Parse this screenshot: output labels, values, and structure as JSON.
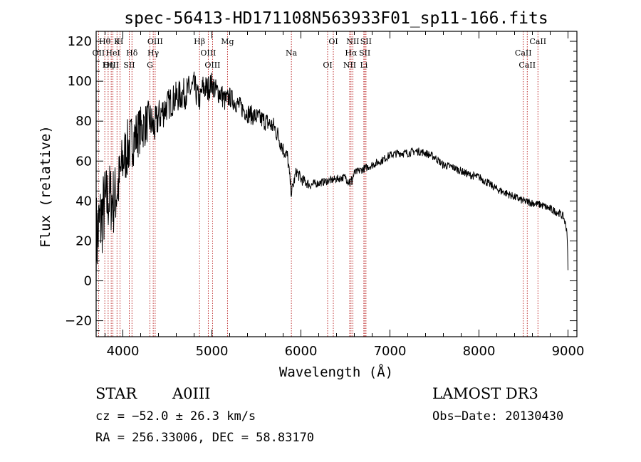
{
  "chart_data": {
    "type": "line",
    "title": "spec-56413-HD171108N563933F01_sp11-166.fits",
    "xlabel": "Wavelength (Å)",
    "ylabel": "Flux (relative)",
    "xlim": [
      3700,
      9100
    ],
    "ylim": [
      -28,
      125
    ],
    "xticks": [
      4000,
      5000,
      6000,
      7000,
      8000,
      9000
    ],
    "xtick_labels": [
      "4000",
      "5000",
      "6000",
      "7000",
      "8000",
      "9000"
    ],
    "yticks": [
      -20,
      0,
      20,
      40,
      60,
      80,
      100,
      120
    ],
    "ytick_labels": [
      "−20",
      "0",
      "20",
      "40",
      "60",
      "80",
      "100",
      "120"
    ],
    "series": [
      {
        "name": "spectrum",
        "x": [
          3700,
          3750,
          3800,
          3850,
          3900,
          3950,
          4000,
          4050,
          4100,
          4150,
          4200,
          4250,
          4300,
          4350,
          4400,
          4450,
          4500,
          4600,
          4700,
          4800,
          4861,
          4900,
          4950,
          5000,
          5050,
          5100,
          5150,
          5200,
          5300,
          5400,
          5500,
          5600,
          5700,
          5750,
          5800,
          5850,
          5893,
          5950,
          6000,
          6100,
          6200,
          6300,
          6400,
          6500,
          6563,
          6600,
          6700,
          6800,
          6900,
          7000,
          7100,
          7200,
          7300,
          7400,
          7500,
          7600,
          7700,
          7800,
          7900,
          8000,
          8100,
          8200,
          8300,
          8400,
          8500,
          8600,
          8700,
          8800,
          8900,
          8950,
          8990,
          9000
        ],
        "y": [
          20,
          30,
          38,
          42,
          40,
          48,
          60,
          66,
          70,
          73,
          76,
          78,
          81,
          76,
          82,
          85,
          88,
          92,
          94,
          97,
          90,
          97,
          96,
          99,
          95,
          94,
          90,
          92,
          88,
          84,
          82,
          80,
          77,
          72,
          66,
          62,
          44,
          55,
          51,
          48,
          49,
          50,
          51,
          52,
          49,
          54,
          56,
          58,
          60,
          63,
          64,
          64,
          65,
          64,
          62,
          58,
          57,
          55,
          53,
          52,
          49,
          46,
          44,
          42,
          40,
          39,
          38,
          36,
          34,
          32,
          25,
          5
        ],
        "noise": [
          25,
          22,
          20,
          18,
          18,
          16,
          15,
          15,
          14,
          13,
          12,
          11,
          10,
          10,
          9,
          9,
          8,
          8,
          8,
          8,
          6,
          7,
          7,
          6,
          6,
          6,
          6,
          5,
          5,
          5,
          5,
          5,
          5,
          5,
          4,
          4,
          3,
          3,
          3,
          2.5,
          2,
          2,
          2,
          2,
          4,
          2,
          2,
          2,
          2,
          2,
          2,
          2,
          2,
          2,
          2,
          2,
          2,
          2,
          2,
          2,
          2,
          2,
          2,
          2,
          2,
          2,
          2,
          2,
          2,
          2,
          2,
          2
        ]
      }
    ],
    "line_markers": [
      {
        "label": "Hθ",
        "x": 3797
      },
      {
        "label": "OII",
        "x": 3727
      },
      {
        "label": "OIII",
        "x": 3869
      },
      {
        "label": "K",
        "x": 3934
      },
      {
        "label": "HeI",
        "x": 3889
      },
      {
        "label": "Hη",
        "x": 3835
      },
      {
        "label": "H",
        "x": 3968
      },
      {
        "label": "Hδ",
        "x": 4102
      },
      {
        "label": "SII",
        "x": 4072
      },
      {
        "label": "OIII",
        "x": 4363
      },
      {
        "label": "Hγ",
        "x": 4341
      },
      {
        "label": "G",
        "x": 4304
      },
      {
        "label": "Hβ",
        "x": 4861
      },
      {
        "label": "OIII",
        "x": 4959
      },
      {
        "label": "OIII",
        "x": 5007
      },
      {
        "label": "Mg",
        "x": 5175
      },
      {
        "label": "Na",
        "x": 5893
      },
      {
        "label": "OI",
        "x": 6300
      },
      {
        "label": "OI",
        "x": 6364
      },
      {
        "label": "Hα",
        "x": 6563
      },
      {
        "label": "NII",
        "x": 6548
      },
      {
        "label": "NII",
        "x": 6583
      },
      {
        "label": "SII",
        "x": 6717
      },
      {
        "label": "Li",
        "x": 6707
      },
      {
        "label": "SII",
        "x": 6731
      },
      {
        "label": "CaII",
        "x": 8498
      },
      {
        "label": "CaII",
        "x": 8542
      },
      {
        "label": "CaII",
        "x": 8662
      }
    ]
  },
  "info": {
    "class": "STAR",
    "subclass": "A0III",
    "survey": "LAMOST DR3",
    "redshift": "cz = −52.0 ± 26.3 km/s",
    "obs_date": "Obs−Date: 20130430",
    "coords": "RA = 256.33006, DEC =  58.83170"
  }
}
